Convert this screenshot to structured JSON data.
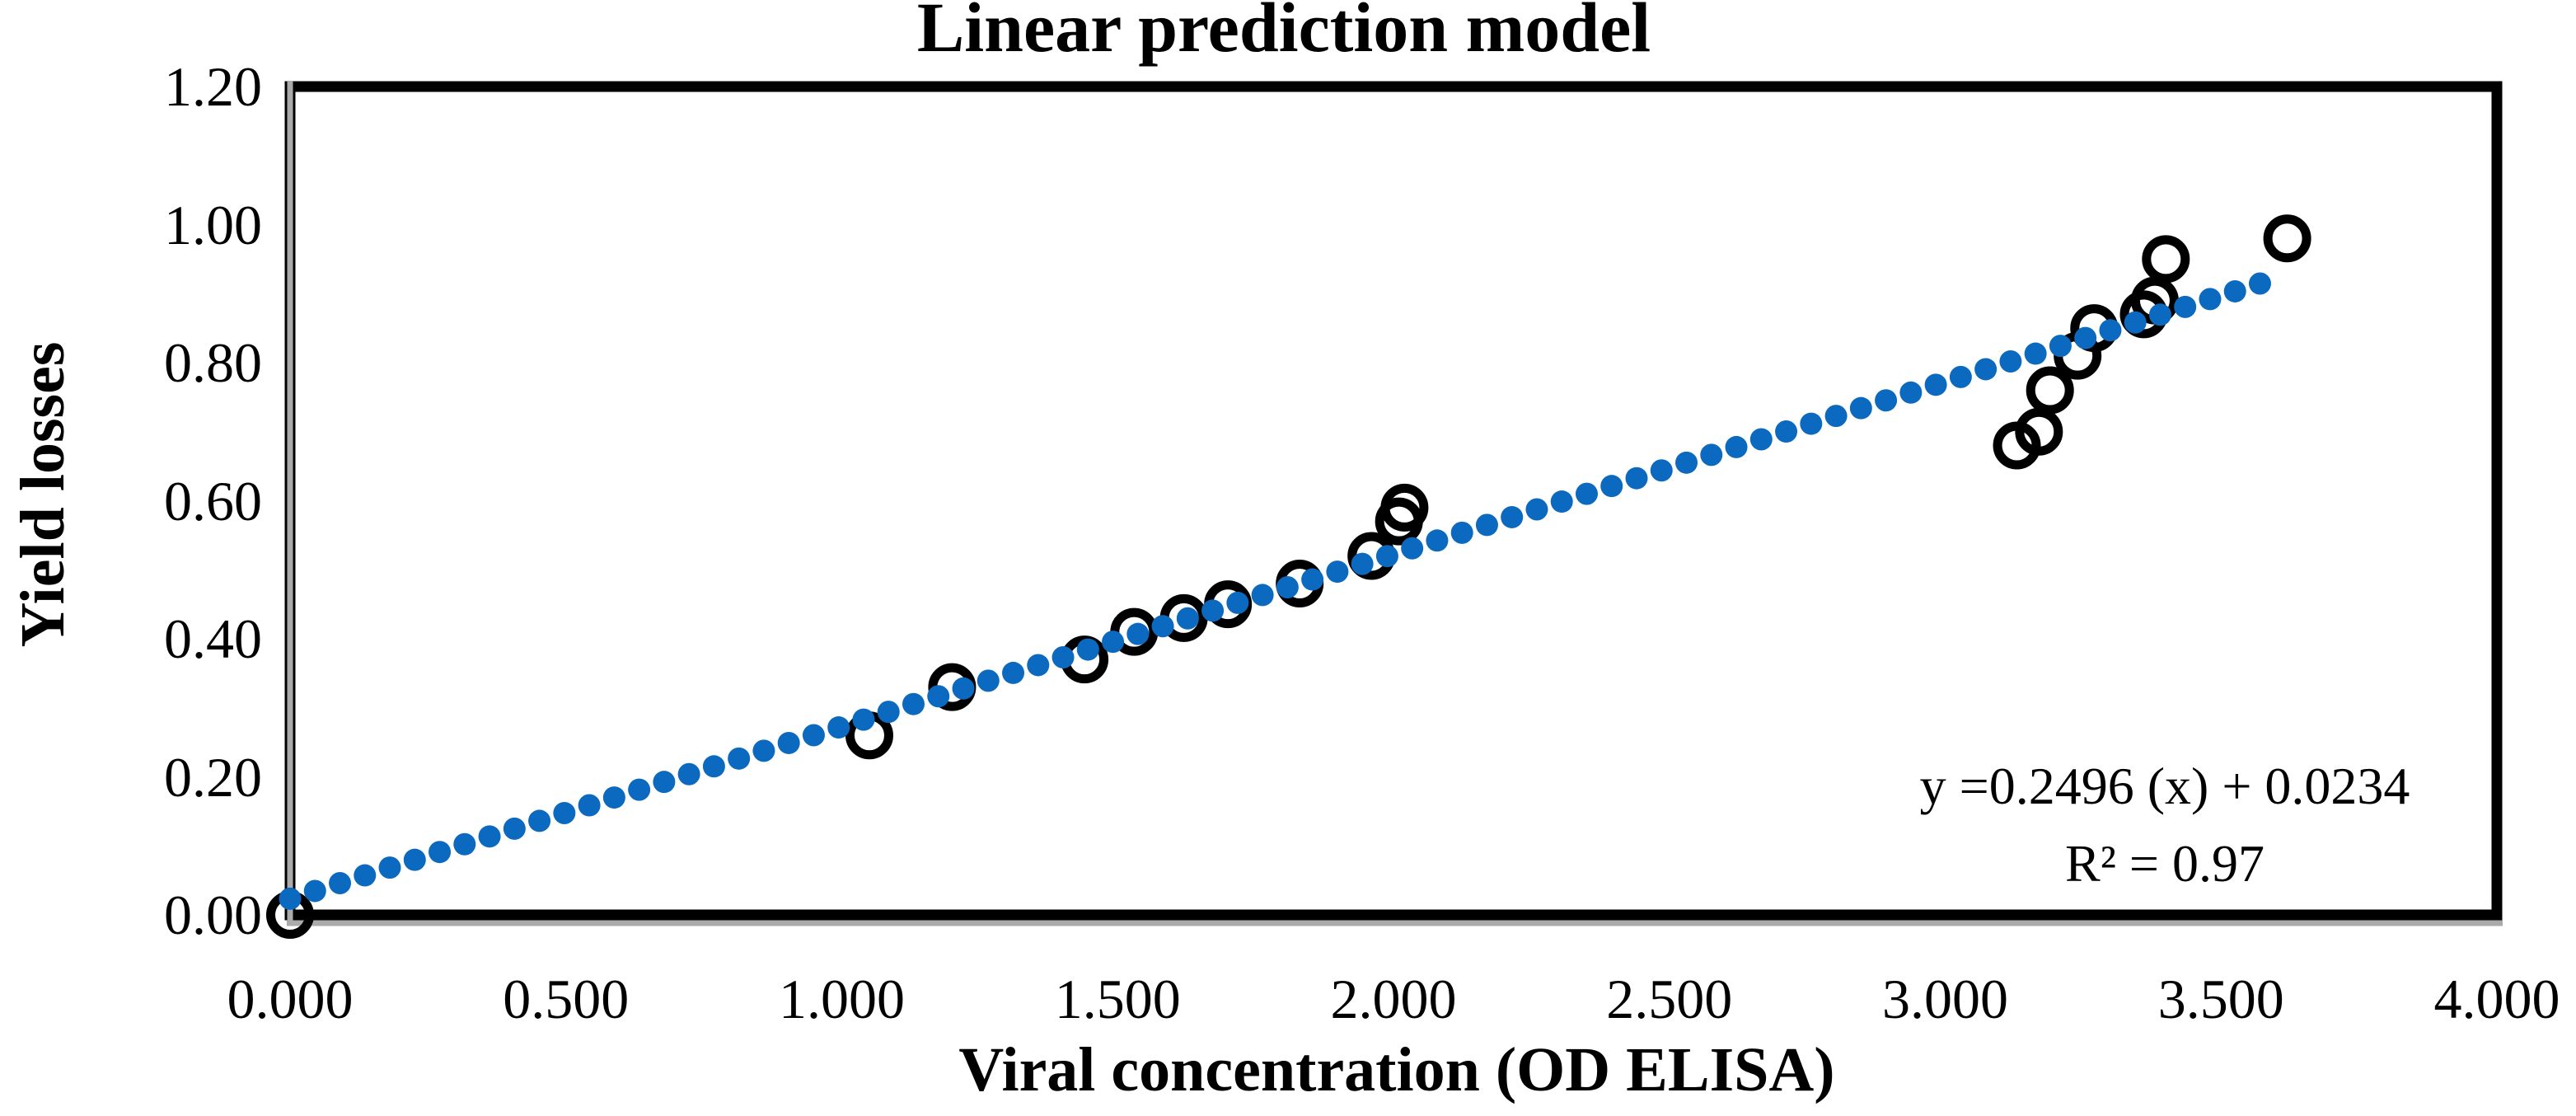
{
  "title": "Linear prediction model",
  "axes": {
    "x": {
      "label": "Viral concentration (OD ELISA)"
    },
    "y": {
      "label": "Yield losses"
    }
  },
  "annotation": {
    "equation": "y =0.2496 (x) + 0.0234",
    "r_squared": "R² = 0.97"
  },
  "colors": {
    "trendline_blue": "#0B6ABF",
    "marker_black": "#000000",
    "border_black": "#000000",
    "axis_gray": "#ABABAB",
    "background": "#FFFFFF",
    "text": "#000000"
  },
  "chart_data": {
    "type": "scatter",
    "title": "Linear prediction model",
    "xlabel": "Viral concentration (OD ELISA)",
    "ylabel": "Yield losses",
    "xlim": [
      0.0,
      4.0
    ],
    "ylim": [
      0.0,
      1.2
    ],
    "x_ticks": [
      "0.000",
      "0.500",
      "1.000",
      "1.500",
      "2.000",
      "2.500",
      "3.000",
      "3.500",
      "4.000"
    ],
    "y_ticks": [
      "0.00",
      "0.20",
      "0.40",
      "0.60",
      "0.80",
      "1.00",
      "1.20"
    ],
    "grid": false,
    "legend": "none",
    "marker": {
      "shape": "open-circle",
      "color": "#000000"
    },
    "points": [
      [
        0.0,
        0.0
      ],
      [
        1.05,
        0.26
      ],
      [
        1.2,
        0.33
      ],
      [
        1.44,
        0.37
      ],
      [
        1.53,
        0.41
      ],
      [
        1.62,
        0.43
      ],
      [
        1.7,
        0.45
      ],
      [
        1.83,
        0.48
      ],
      [
        1.96,
        0.52
      ],
      [
        2.01,
        0.57
      ],
      [
        2.02,
        0.59
      ],
      [
        3.13,
        0.68
      ],
      [
        3.17,
        0.7
      ],
      [
        3.19,
        0.76
      ],
      [
        3.24,
        0.81
      ],
      [
        3.27,
        0.85
      ],
      [
        3.36,
        0.87
      ],
      [
        3.38,
        0.89
      ],
      [
        3.4,
        0.95
      ],
      [
        3.62,
        0.98
      ]
    ],
    "trendline": {
      "slope": 0.2496,
      "intercept": 0.0234,
      "x_start": 0.0,
      "x_end": 3.59,
      "style": "dotted",
      "color": "#0B6ABF",
      "equation_label": "y =0.2496 (x) + 0.0234",
      "r2_label": "R² = 0.97"
    }
  }
}
